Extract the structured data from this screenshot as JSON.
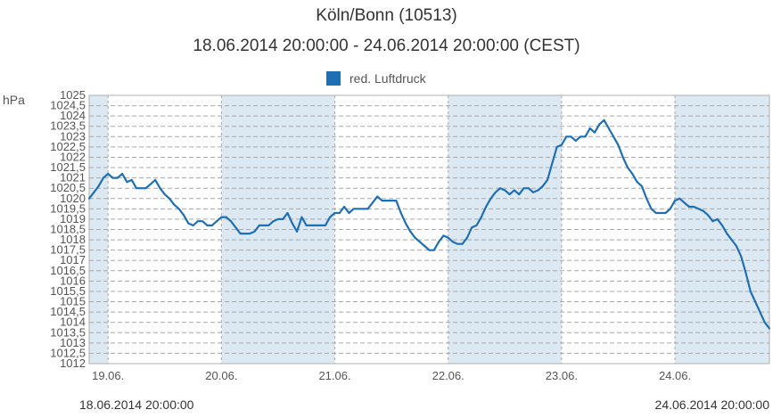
{
  "chart_data": {
    "type": "line",
    "title": "Köln/Bonn (10513)",
    "subtitle": "18.06.2014 20:00:00 - 24.06.2014 20:00:00 (CEST)",
    "ylabel": "hPa",
    "xlabel": "",
    "range_start": "18.06.2014 20:00:00",
    "range_end": "24.06.2014 20:00:00",
    "ylim": [
      1012,
      1025
    ],
    "yticks": [
      "1012",
      "1012,5",
      "1013",
      "1013,5",
      "1014",
      "1014,5",
      "1015",
      "1015,5",
      "1016",
      "1016,5",
      "1017",
      "1017,5",
      "1018",
      "1018,5",
      "1019",
      "1019,5",
      "1020",
      "1020,5",
      "1021",
      "1021,5",
      "1022",
      "1022,5",
      "1023",
      "1023,5",
      "1024",
      "1024,5",
      "1025"
    ],
    "x_hours_range": [
      20,
      164
    ],
    "xticks": [
      {
        "label": "19.06.",
        "hour": 24
      },
      {
        "label": "20.06.",
        "hour": 48
      },
      {
        "label": "21.06.",
        "hour": 72
      },
      {
        "label": "22.06.",
        "hour": 96
      },
      {
        "label": "23.06.",
        "hour": 120
      },
      {
        "label": "24.06.",
        "hour": 144
      }
    ],
    "grid": true,
    "legend_position": "top-center",
    "colors": {
      "line": "#1f6fb4",
      "shade": "#dce9f3",
      "grid": "#a8a8a8"
    },
    "series": [
      {
        "name": "red. Luftdruck",
        "x": [
          20,
          21,
          22,
          23,
          24,
          25,
          26,
          27,
          28,
          29,
          30,
          31,
          32,
          33,
          34,
          35,
          36,
          37,
          38,
          39,
          40,
          41,
          42,
          43,
          44,
          45,
          46,
          47,
          48,
          49,
          50,
          51,
          52,
          53,
          54,
          55,
          56,
          57,
          58,
          59,
          60,
          61,
          62,
          63,
          64,
          65,
          66,
          67,
          68,
          69,
          70,
          71,
          72,
          73,
          74,
          75,
          76,
          77,
          78,
          79,
          80,
          81,
          82,
          83,
          84,
          85,
          86,
          87,
          88,
          89,
          90,
          91,
          92,
          93,
          94,
          95,
          96,
          97,
          98,
          99,
          100,
          101,
          102,
          103,
          104,
          105,
          106,
          107,
          108,
          109,
          110,
          111,
          112,
          113,
          114,
          115,
          116,
          117,
          118,
          119,
          120,
          121,
          122,
          123,
          124,
          125,
          126,
          127,
          128,
          129,
          130,
          131,
          132,
          133,
          134,
          135,
          136,
          137,
          138,
          139,
          140,
          141,
          142,
          143,
          144,
          145,
          146,
          147,
          148,
          149,
          150,
          151,
          152,
          153,
          154,
          155,
          156,
          157,
          158,
          159,
          160,
          161,
          162,
          163,
          164
        ],
        "values": [
          1020.0,
          1020.3,
          1020.6,
          1021.0,
          1021.2,
          1021.0,
          1021.0,
          1021.2,
          1020.8,
          1020.9,
          1020.5,
          1020.5,
          1020.5,
          1020.7,
          1020.9,
          1020.5,
          1020.2,
          1020.0,
          1019.7,
          1019.5,
          1019.2,
          1018.8,
          1018.7,
          1018.9,
          1018.9,
          1018.7,
          1018.7,
          1018.9,
          1019.1,
          1019.1,
          1018.9,
          1018.6,
          1018.3,
          1018.3,
          1018.3,
          1018.4,
          1018.7,
          1018.7,
          1018.7,
          1018.9,
          1019.0,
          1019.0,
          1019.3,
          1018.8,
          1018.4,
          1019.1,
          1018.7,
          1018.7,
          1018.7,
          1018.7,
          1018.7,
          1019.1,
          1019.3,
          1019.3,
          1019.6,
          1019.3,
          1019.5,
          1019.5,
          1019.5,
          1019.5,
          1019.8,
          1020.1,
          1019.9,
          1019.9,
          1019.9,
          1019.9,
          1019.3,
          1018.8,
          1018.4,
          1018.1,
          1017.9,
          1017.7,
          1017.5,
          1017.5,
          1017.9,
          1018.2,
          1018.1,
          1017.9,
          1017.8,
          1017.8,
          1018.1,
          1018.6,
          1018.7,
          1019.1,
          1019.6,
          1020.0,
          1020.3,
          1020.5,
          1020.4,
          1020.2,
          1020.4,
          1020.2,
          1020.5,
          1020.5,
          1020.3,
          1020.4,
          1020.6,
          1020.9,
          1021.7,
          1022.5,
          1022.6,
          1023.0,
          1023.0,
          1022.8,
          1023.0,
          1023.0,
          1023.4,
          1023.2,
          1023.6,
          1023.8,
          1023.4,
          1023.0,
          1022.6,
          1022.0,
          1021.5,
          1021.2,
          1020.8,
          1020.6,
          1020.0,
          1019.5,
          1019.3,
          1019.3,
          1019.3,
          1019.5,
          1019.9,
          1020.0,
          1019.8,
          1019.6,
          1019.6,
          1019.5,
          1019.4,
          1019.2,
          1018.9,
          1019.0,
          1018.7,
          1018.3,
          1018.0,
          1017.7,
          1017.2,
          1016.4,
          1015.5,
          1015.0,
          1014.5,
          1014.0,
          1013.7
        ]
      }
    ]
  }
}
